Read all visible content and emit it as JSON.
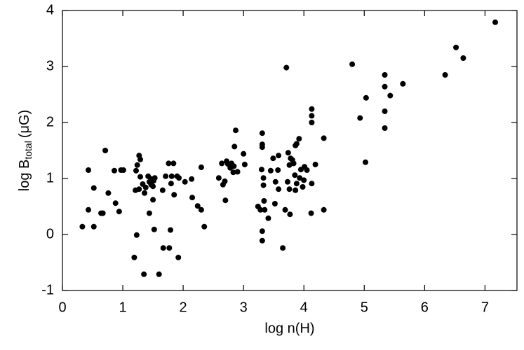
{
  "chart_data": {
    "type": "scatter",
    "xlabel": "log n(H)",
    "ylabel": {
      "main": "log B",
      "sub": "total",
      "unit": "(μG)"
    },
    "color": "#000000",
    "xlim": [
      0,
      7.53
    ],
    "ylim": [
      -1,
      4
    ],
    "xticks": [
      0,
      1,
      2,
      3,
      4,
      5,
      6,
      7
    ],
    "yticks": [
      -1,
      0,
      1,
      2,
      3,
      4
    ],
    "x": [
      0.33,
      0.43,
      0.43,
      0.52,
      0.52,
      0.64,
      0.67,
      0.71,
      0.76,
      0.86,
      0.88,
      0.94,
      0.97,
      1.01,
      1.19,
      1.21,
      1.22,
      1.23,
      1.24,
      1.27,
      1.29,
      1.27,
      1.29,
      1.33,
      1.35,
      1.36,
      1.38,
      1.42,
      1.44,
      1.44,
      1.47,
      1.48,
      1.5,
      1.51,
      1.5,
      1.53,
      1.52,
      1.6,
      1.66,
      1.67,
      1.71,
      1.76,
      1.77,
      1.79,
      1.8,
      1.81,
      1.84,
      1.85,
      1.9,
      1.92,
      1.93,
      2.03,
      2.14,
      2.15,
      2.24,
      2.3,
      2.3,
      2.35,
      2.59,
      2.64,
      2.66,
      2.69,
      2.7,
      2.72,
      2.74,
      2.78,
      2.8,
      2.83,
      2.84,
      2.85,
      2.87,
      2.9,
      3.0,
      3.02,
      3.24,
      3.28,
      3.3,
      3.31,
      3.31,
      3.31,
      3.31,
      3.31,
      3.33,
      3.33,
      3.34,
      3.35,
      3.41,
      3.45,
      3.49,
      3.52,
      3.53,
      3.57,
      3.58,
      3.58,
      3.65,
      3.69,
      3.71,
      3.73,
      3.74,
      3.76,
      3.76,
      3.77,
      3.78,
      3.81,
      3.83,
      3.85,
      3.86,
      3.86,
      3.88,
      3.88,
      3.92,
      3.93,
      3.95,
      3.98,
      4.0,
      4.01,
      4.05,
      4.12,
      4.13,
      4.13,
      4.13,
      4.13,
      4.19,
      4.33,
      4.33,
      4.8,
      4.93,
      5.03,
      5.02,
      5.34,
      5.34,
      5.34,
      5.34,
      5.43,
      5.64,
      6.34,
      6.52,
      6.64,
      7.17
    ],
    "values": [
      0.14,
      1.15,
      0.44,
      0.83,
      0.14,
      0.38,
      0.38,
      1.5,
      0.74,
      1.14,
      0.56,
      0.41,
      1.15,
      1.15,
      -0.41,
      0.79,
      1.14,
      -0.01,
      1.24,
      1.41,
      1.34,
      0.81,
      1.03,
      0.9,
      -0.71,
      0.74,
      0.84,
      1.04,
      0.94,
      0.38,
      0.89,
      0.99,
      0.86,
      0.96,
      0.62,
      1.01,
      0.09,
      -0.71,
      0.79,
      -0.24,
      1.04,
      1.27,
      -0.24,
      0.08,
      0.91,
      1.04,
      1.27,
      0.71,
      1.04,
      -0.41,
      1.01,
      0.94,
      0.99,
      0.66,
      0.51,
      0.44,
      1.2,
      0.14,
      1.01,
      1.27,
      0.89,
      0.95,
      0.61,
      1.31,
      1.26,
      1.19,
      1.27,
      1.11,
      1.22,
      1.57,
      1.86,
      1.12,
      1.44,
      1.25,
      0.5,
      0.44,
      1.16,
      1.81,
      1.61,
      1.56,
      0.06,
      -0.11,
      1.01,
      0.88,
      0.6,
      0.44,
      0.29,
      1.14,
      1.36,
      0.55,
      0.94,
      1.15,
      0.81,
      1.41,
      -0.24,
      0.44,
      2.98,
      0.94,
      1.46,
      0.81,
      1.24,
      0.36,
      1.36,
      1.33,
      1.27,
      1.06,
      0.79,
      1.59,
      1.62,
      0.91,
      1.71,
      1.01,
      1.16,
      0.85,
      0.97,
      1.21,
      1.15,
      0.38,
      2.24,
      2.12,
      2.0,
      0.91,
      1.25,
      1.72,
      0.44,
      3.04,
      2.08,
      2.44,
      1.29,
      2.85,
      2.64,
      2.2,
      1.9,
      2.48,
      2.69,
      2.85,
      3.34,
      3.15,
      3.79
    ]
  }
}
